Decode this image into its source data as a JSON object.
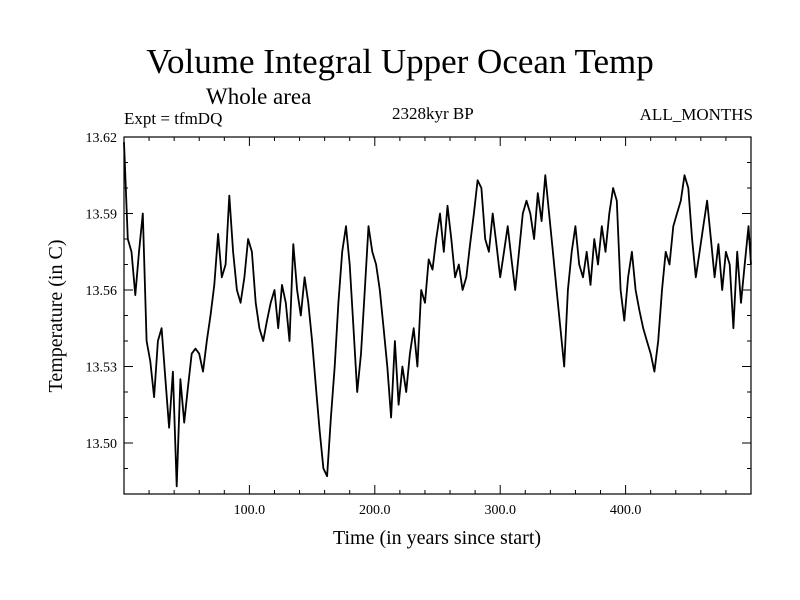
{
  "chart_data": {
    "type": "line",
    "title": "Volume Integral Upper Ocean Temp",
    "subtitle": "Whole area",
    "experiment_label": "Expt = tfmDQ",
    "period_label": "2328kyr BP",
    "months_label": "ALL_MONTHS",
    "xlabel": "Time (in years since start)",
    "ylabel": "Temperature (in C)",
    "xlim": [
      0,
      500
    ],
    "ylim": [
      13.48,
      13.62
    ],
    "x_ticks": [
      100,
      200,
      300,
      400
    ],
    "x_tick_labels": [
      "100.0",
      "200.0",
      "300.0",
      "400.0"
    ],
    "y_ticks": [
      13.5,
      13.53,
      13.56,
      13.59,
      13.62
    ],
    "y_tick_labels": [
      "13.50",
      "13.53",
      "13.56",
      "13.59",
      "13.62"
    ],
    "grid": false,
    "series": [
      {
        "name": "Volume Integral Upper Ocean Temp",
        "color": "#000000",
        "x": [
          0,
          3,
          6,
          9,
          12,
          15,
          18,
          21,
          24,
          27,
          30,
          33,
          36,
          39,
          42,
          45,
          48,
          51,
          54,
          57,
          60,
          63,
          66,
          69,
          72,
          75,
          78,
          81,
          84,
          87,
          90,
          93,
          96,
          99,
          102,
          105,
          108,
          111,
          114,
          117,
          120,
          123,
          126,
          129,
          132,
          135,
          138,
          141,
          144,
          147,
          150,
          153,
          156,
          159,
          162,
          165,
          168,
          171,
          174,
          177,
          180,
          183,
          186,
          189,
          192,
          195,
          198,
          201,
          204,
          207,
          210,
          213,
          216,
          219,
          222,
          225,
          228,
          231,
          234,
          237,
          240,
          243,
          246,
          249,
          252,
          255,
          258,
          261,
          264,
          267,
          270,
          273,
          276,
          279,
          282,
          285,
          288,
          291,
          294,
          297,
          300,
          303,
          306,
          309,
          312,
          315,
          318,
          321,
          324,
          327,
          330,
          333,
          336,
          339,
          342,
          345,
          348,
          351,
          354,
          357,
          360,
          363,
          366,
          369,
          372,
          375,
          378,
          381,
          384,
          387,
          390,
          393,
          396,
          399,
          402,
          405,
          408,
          411,
          414,
          417,
          420,
          423,
          426,
          429,
          432,
          435,
          438,
          441,
          444,
          447,
          450,
          453,
          456,
          459,
          462,
          465,
          468,
          471,
          474,
          477,
          480,
          483,
          486,
          489,
          492,
          495,
          498,
          500
        ],
        "y": [
          13.618,
          13.58,
          13.575,
          13.558,
          13.575,
          13.59,
          13.54,
          13.532,
          13.518,
          13.54,
          13.545,
          13.525,
          13.506,
          13.528,
          13.483,
          13.525,
          13.508,
          13.522,
          13.535,
          13.537,
          13.535,
          13.528,
          13.54,
          13.55,
          13.562,
          13.582,
          13.565,
          13.57,
          13.597,
          13.575,
          13.56,
          13.555,
          13.565,
          13.58,
          13.575,
          13.555,
          13.545,
          13.54,
          13.548,
          13.555,
          13.56,
          13.545,
          13.562,
          13.555,
          13.54,
          13.578,
          13.56,
          13.55,
          13.565,
          13.555,
          13.54,
          13.522,
          13.505,
          13.49,
          13.487,
          13.51,
          13.53,
          13.555,
          13.575,
          13.585,
          13.57,
          13.545,
          13.52,
          13.535,
          13.56,
          13.585,
          13.575,
          13.57,
          13.56,
          13.545,
          13.53,
          13.51,
          13.54,
          13.515,
          13.53,
          13.52,
          13.535,
          13.545,
          13.53,
          13.56,
          13.555,
          13.572,
          13.568,
          13.58,
          13.59,
          13.575,
          13.593,
          13.58,
          13.565,
          13.57,
          13.56,
          13.565,
          13.578,
          13.59,
          13.603,
          13.6,
          13.58,
          13.575,
          13.59,
          13.578,
          13.565,
          13.575,
          13.585,
          13.572,
          13.56,
          13.575,
          13.59,
          13.595,
          13.59,
          13.58,
          13.598,
          13.587,
          13.605,
          13.59,
          13.575,
          13.56,
          13.545,
          13.53,
          13.56,
          13.575,
          13.585,
          13.57,
          13.565,
          13.575,
          13.562,
          13.58,
          13.57,
          13.585,
          13.575,
          13.59,
          13.6,
          13.595,
          13.56,
          13.548,
          13.565,
          13.575,
          13.56,
          13.552,
          13.545,
          13.54,
          13.535,
          13.528,
          13.54,
          13.56,
          13.575,
          13.57,
          13.585,
          13.59,
          13.595,
          13.605,
          13.6,
          13.58,
          13.565,
          13.575,
          13.585,
          13.595,
          13.58,
          13.565,
          13.578,
          13.56,
          13.575,
          13.57,
          13.545,
          13.575,
          13.555,
          13.57,
          13.585,
          13.57
        ]
      }
    ]
  }
}
